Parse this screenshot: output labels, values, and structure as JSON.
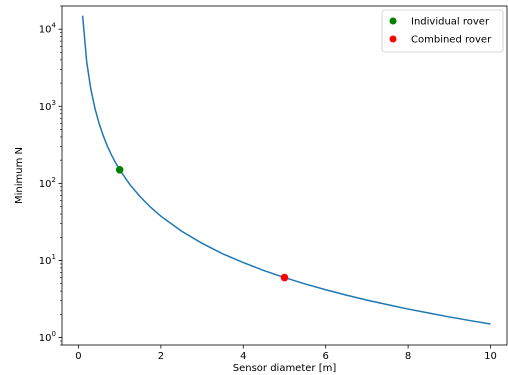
{
  "chart_data": {
    "type": "line",
    "xlabel": "Sensor diameter [m]",
    "ylabel": "Minimum N",
    "xlim": [
      -0.4,
      10.4
    ],
    "ylim": [
      0.8,
      20000
    ],
    "yscale": "log",
    "grid": false,
    "legend_position": "top-right",
    "x_ticks": [
      0,
      2,
      4,
      6,
      8,
      10
    ],
    "x_tick_labels": [
      "0",
      "2",
      "4",
      "6",
      "8",
      "10"
    ],
    "y_ticks": [
      1,
      10,
      100,
      1000,
      10000
    ],
    "y_tick_labels": [
      {
        "base": "10",
        "exp": "0"
      },
      {
        "base": "10",
        "exp": "1"
      },
      {
        "base": "10",
        "exp": "2"
      },
      {
        "base": "10",
        "exp": "3"
      },
      {
        "base": "10",
        "exp": "4"
      }
    ],
    "series": [
      {
        "color": "#1f77b4",
        "x": [
          0.1,
          0.2,
          0.3,
          0.4,
          0.5,
          0.6,
          0.7,
          0.8,
          0.9,
          1.0,
          1.25,
          1.5,
          1.75,
          2.0,
          2.5,
          3.0,
          3.5,
          4.0,
          4.5,
          5.0,
          5.5,
          6.0,
          6.5,
          7.0,
          7.5,
          8.0,
          8.5,
          9.0,
          9.5,
          10.0
        ],
        "y": [
          15000,
          3750,
          1667,
          938,
          600,
          417,
          306,
          234,
          185,
          150,
          96,
          66.7,
          49,
          37.5,
          24,
          16.7,
          12.2,
          9.4,
          7.4,
          6.0,
          4.96,
          4.17,
          3.55,
          3.06,
          2.67,
          2.34,
          2.08,
          1.85,
          1.66,
          1.5
        ]
      }
    ],
    "points": [
      {
        "name": "Individual rover",
        "x": 1.0,
        "y": 150,
        "color": "#008000"
      },
      {
        "name": "Combined rover",
        "x": 5.0,
        "y": 6.0,
        "color": "#ff0000"
      }
    ]
  }
}
